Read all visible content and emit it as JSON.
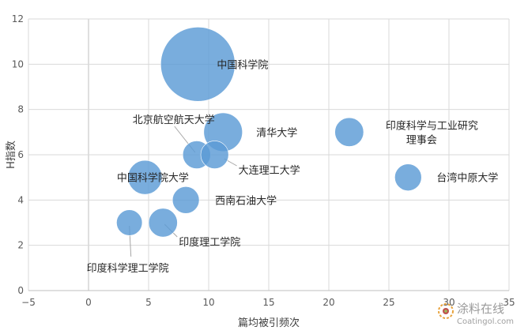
{
  "chart_data": {
    "type": "scatter",
    "subtype": "bubble",
    "title": "",
    "xlabel": "篇均被引频次",
    "ylabel": "H指数",
    "xlim": [
      -5,
      35
    ],
    "ylim": [
      0,
      12
    ],
    "xticks": [
      -5,
      0,
      5,
      10,
      15,
      20,
      25,
      30,
      35
    ],
    "yticks": [
      0,
      2,
      4,
      6,
      8,
      10,
      12
    ],
    "grid": true,
    "color": "#5b9bd5",
    "points": [
      {
        "label": "中国科学院",
        "x": 9.1,
        "y": 10,
        "size": 100
      },
      {
        "label": "北京航空航天大学",
        "x": 9.0,
        "y": 6,
        "size": 14
      },
      {
        "label": "清华大学",
        "x": 11.2,
        "y": 7,
        "size": 27
      },
      {
        "label": "大连理工大学",
        "x": 10.5,
        "y": 6,
        "size": 14
      },
      {
        "label": "印度科学与工业研究理事会",
        "x": 21.7,
        "y": 7,
        "size": 15
      },
      {
        "label": "台湾中原大学",
        "x": 26.6,
        "y": 5,
        "size": 13
      },
      {
        "label": "中国科学院大学",
        "x": 4.7,
        "y": 5,
        "size": 21
      },
      {
        "label": "西南石油大学",
        "x": 8.1,
        "y": 4,
        "size": 13
      },
      {
        "label": "印度理工学院",
        "x": 6.2,
        "y": 3,
        "size": 15
      },
      {
        "label": "印度科学理工学院",
        "x": 3.4,
        "y": 3,
        "size": 12
      }
    ]
  },
  "watermark": {
    "text": "涂料在线",
    "sub": "Coatingol.com"
  }
}
